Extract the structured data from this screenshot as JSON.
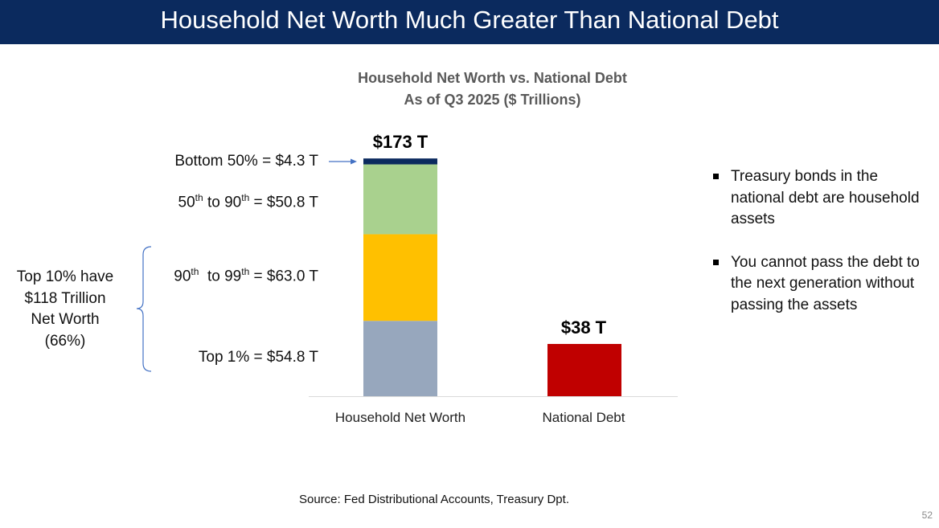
{
  "banner": {
    "title": "Household Net Worth Much Greater Than National Debt"
  },
  "chart_data": {
    "type": "bar",
    "title": "Household Net Worth vs. National Debt",
    "subtitle": "As of Q3 2025 ($ Trillions)",
    "categories": [
      "Household Net Worth",
      "National Debt"
    ],
    "totals": [
      173,
      38
    ],
    "total_labels": [
      "$173 T",
      "$38 T"
    ],
    "ylim": [
      0,
      173
    ],
    "series": [
      {
        "name": "Top 1%",
        "values": [
          54.8,
          0
        ],
        "color": "#97a7bd"
      },
      {
        "name": "90th to 99th",
        "values": [
          63.0,
          0
        ],
        "color": "#ffc000"
      },
      {
        "name": "50th to 90th",
        "values": [
          50.8,
          0
        ],
        "color": "#a9d18e"
      },
      {
        "name": "Bottom 50%",
        "values": [
          4.3,
          0
        ],
        "color": "#0b2a5e"
      },
      {
        "name": "National Debt",
        "values": [
          0,
          38
        ],
        "color": "#c00000"
      }
    ],
    "segment_labels": {
      "bottom50": "Bottom 50% = $4.3 T",
      "p50_90_base": "50",
      "p50_90_sup": "th",
      "p50_90_mid": " to 90",
      "p50_90_sup2": "th",
      "p50_90_rest": " = $50.8 T",
      "p90_99_base": "90",
      "p90_99_sup": "th",
      "p90_99_mid": "  to 99",
      "p90_99_sup2": "th",
      "p90_99_rest": " = $63.0 T",
      "top1": "Top 1% = $54.8 T"
    },
    "annotation": {
      "line1": "Top 10% have",
      "line2": "$118 Trillion",
      "line3": "Net Worth",
      "line4": "(66%)"
    },
    "grid": false
  },
  "bullets": [
    "Treasury bonds in the national debt are household assets",
    "You cannot pass the debt to the next generation without passing the assets"
  ],
  "source": "Source:  Fed Distributional Accounts, Treasury Dpt.",
  "page_number": "52",
  "colors": {
    "banner": "#0b2a5e",
    "arrow": "#4472c4",
    "bracket": "#4472c4"
  }
}
